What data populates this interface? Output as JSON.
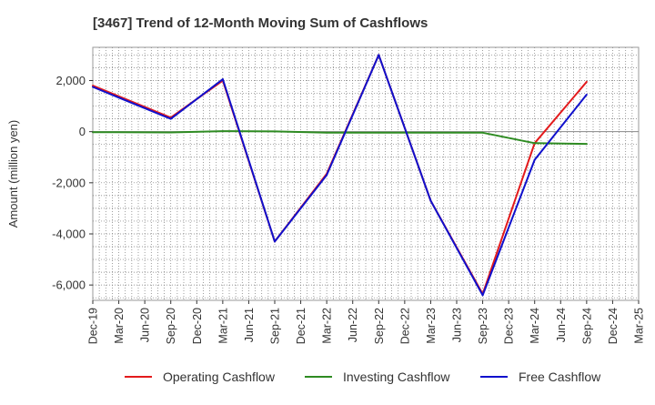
{
  "chart_data": {
    "type": "line",
    "title": "[3467]  Trend of 12-Month Moving Sum of Cashflows",
    "xlabel": "",
    "ylabel": "Amount (million yen)",
    "categories": [
      "Dec-19",
      "Mar-20",
      "Jun-20",
      "Sep-20",
      "Dec-20",
      "Mar-21",
      "Jun-21",
      "Sep-21",
      "Dec-21",
      "Mar-22",
      "Jun-22",
      "Sep-22",
      "Dec-22",
      "Mar-23",
      "Jun-23",
      "Sep-23",
      "Dec-23",
      "Mar-24",
      "Jun-24",
      "Sep-24",
      "Dec-24",
      "Mar-25"
    ],
    "ylim": [
      -6600,
      3300
    ],
    "yticks": [
      2000,
      0,
      -2000,
      -4000,
      -6000
    ],
    "ytick_labels": [
      "2,000",
      "0",
      "-2,000",
      "-4,000",
      "-6,000"
    ],
    "grid": true,
    "legend_position": "bottom",
    "series": [
      {
        "name": "Operating Cashflow",
        "color": "#e31a1c",
        "values": [
          1800,
          null,
          null,
          550,
          null,
          2000,
          null,
          -4300,
          null,
          -1650,
          null,
          3000,
          null,
          -2700,
          null,
          -6350,
          null,
          -450,
          null,
          1950,
          null,
          null
        ]
      },
      {
        "name": "Investing Cashflow",
        "color": "#2e8b22",
        "values": [
          -20,
          null,
          null,
          -30,
          null,
          20,
          null,
          10,
          null,
          -40,
          null,
          -40,
          null,
          -40,
          null,
          -40,
          null,
          -450,
          null,
          -480,
          null,
          null
        ]
      },
      {
        "name": "Free Cashflow",
        "color": "#1010cc",
        "values": [
          1750,
          null,
          null,
          500,
          null,
          2050,
          null,
          -4300,
          null,
          -1700,
          null,
          3000,
          null,
          -2700,
          null,
          -6400,
          null,
          -1100,
          null,
          1450,
          null,
          null
        ]
      }
    ]
  }
}
